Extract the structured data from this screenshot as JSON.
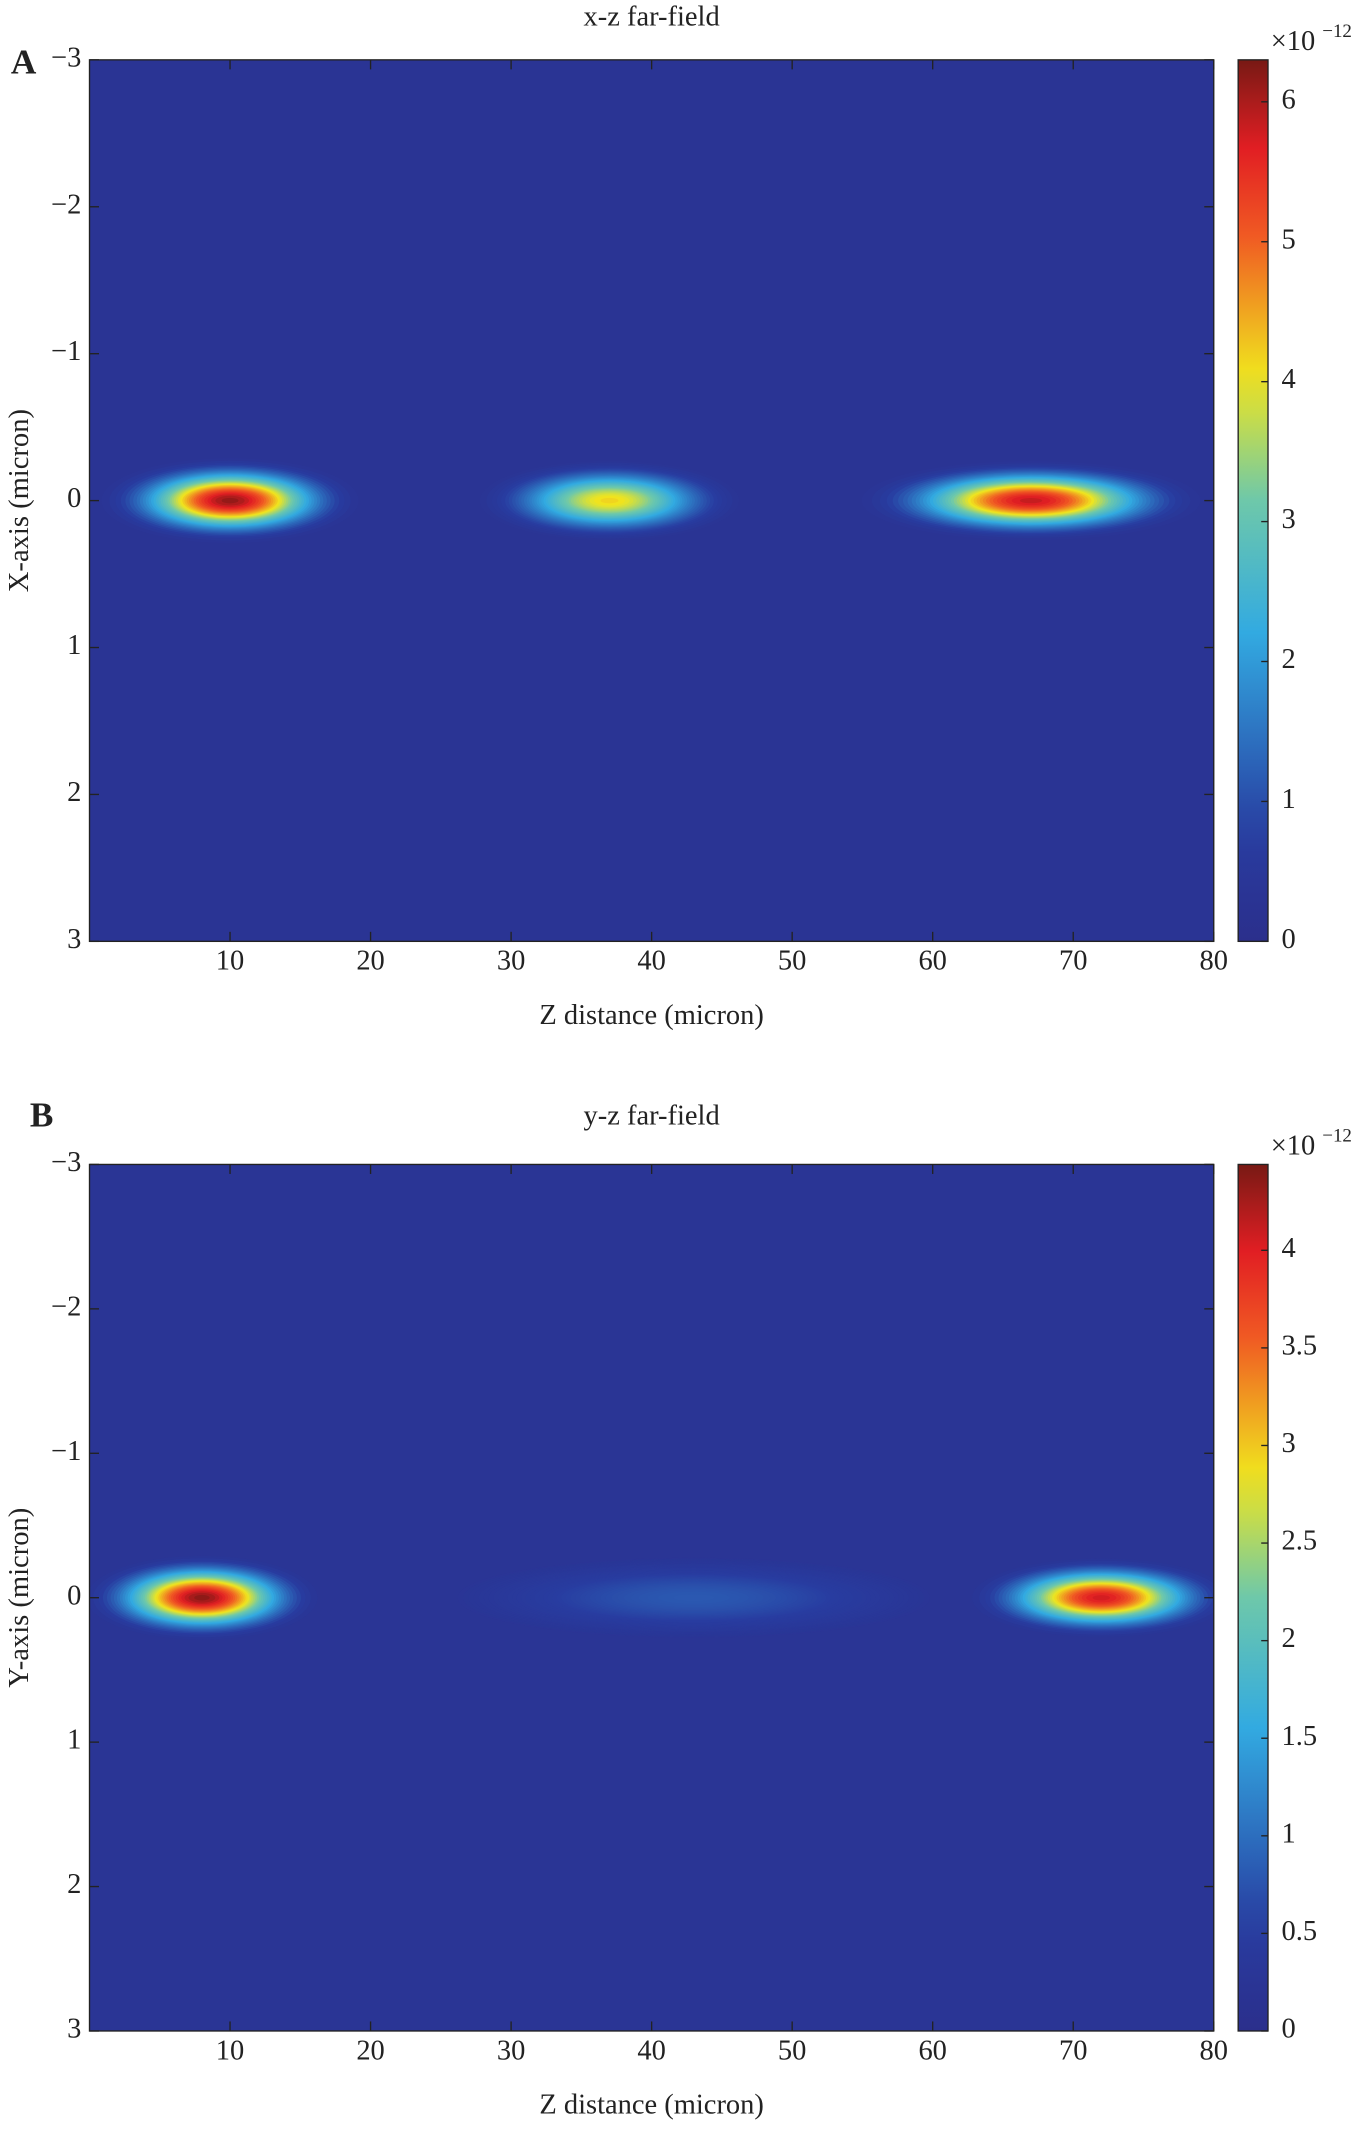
{
  "chart_data": [
    {
      "type": "heatmap",
      "panel_label": "A",
      "title": "x-z far-field",
      "x_label": "Z distance (micron)",
      "y_label": "X-axis (micron)",
      "xlim": [
        0,
        80
      ],
      "xticks": [
        10,
        20,
        30,
        40,
        50,
        60,
        70,
        80
      ],
      "ylim": [
        -3,
        3
      ],
      "y_inverted": true,
      "yticks": [
        {
          "value": -3,
          "label": "−3"
        },
        {
          "value": -2,
          "label": "−2"
        },
        {
          "value": -1,
          "label": "−1"
        },
        0,
        1,
        2,
        3
      ],
      "colormap": "jet",
      "background_value": 0.3,
      "clim": [
        0,
        6.3
      ],
      "cticks": [
        0,
        1,
        2,
        3,
        4,
        5,
        6
      ],
      "colorbar_multiplier": "×10",
      "colorbar_exponent": "−12",
      "spots": [
        {
          "z": 10,
          "x": 0,
          "peak": 6.2,
          "z_width": 9.5,
          "x_width": 0.3
        },
        {
          "z": 37,
          "x": 0,
          "peak": 4.2,
          "z_width": 9.5,
          "x_width": 0.28
        },
        {
          "z": 67,
          "x": 0,
          "peak": 5.9,
          "z_width": 12.5,
          "x_width": 0.28
        }
      ]
    },
    {
      "type": "heatmap",
      "panel_label": "B",
      "title": "y-z far-field",
      "x_label": "Z distance (micron)",
      "y_label": "Y-axis (micron)",
      "xlim": [
        0,
        80
      ],
      "xticks": [
        10,
        20,
        30,
        40,
        50,
        60,
        70,
        80
      ],
      "ylim": [
        -3,
        3
      ],
      "y_inverted": true,
      "yticks": [
        {
          "value": -3,
          "label": "−3"
        },
        {
          "value": -2,
          "label": "−2"
        },
        {
          "value": -1,
          "label": "−1"
        },
        0,
        1,
        2,
        3
      ],
      "colormap": "jet",
      "background_value": 0.25,
      "clim": [
        0,
        4.44
      ],
      "cticks": [
        0,
        0.5,
        1,
        1.5,
        2,
        2.5,
        3,
        3.5,
        4
      ],
      "colorbar_multiplier": "×10",
      "colorbar_exponent": "−12",
      "spots": [
        {
          "z": 8,
          "x": 0,
          "peak": 4.4,
          "z_width": 8.5,
          "x_width": 0.3
        },
        {
          "z": 43,
          "x": 0,
          "peak": 0.8,
          "z_width": 17,
          "x_width": 0.28
        },
        {
          "z": 72,
          "x": 0,
          "peak": 4.1,
          "z_width": 9.5,
          "x_width": 0.28
        }
      ]
    }
  ]
}
